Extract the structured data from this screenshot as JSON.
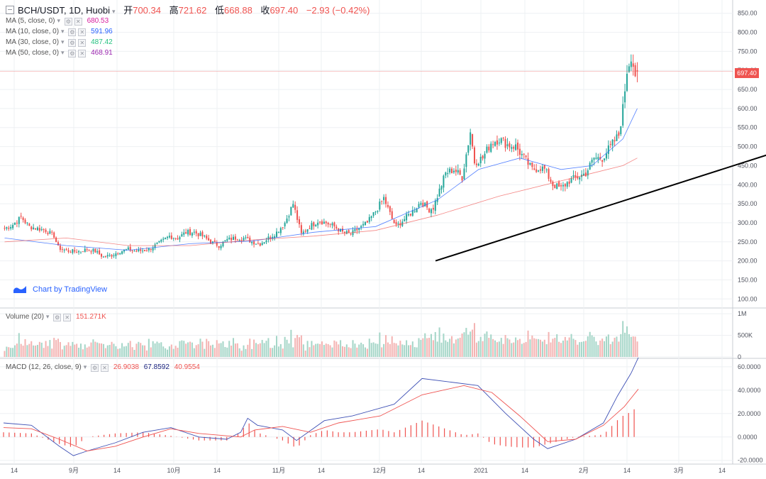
{
  "header": {
    "symbol": "BCH/USDT, 1D, Huobi",
    "open_label": "开",
    "open": "700.34",
    "high_label": "高",
    "high": "721.62",
    "low_label": "低",
    "low": "668.88",
    "close_label": "收",
    "close": "697.40",
    "change": "−2.93 (−0.42%)"
  },
  "indicators": {
    "ma5": {
      "label": "MA (5, close, 0)",
      "value": "680.53",
      "color": "#d81b9e"
    },
    "ma10": {
      "label": "MA (10, close, 0)",
      "value": "591.96",
      "color": "#2962ff"
    },
    "ma30": {
      "label": "MA (30, close, 0)",
      "value": "487.42",
      "color": "#26c281"
    },
    "ma50": {
      "label": "MA (50, close, 0)",
      "value": "468.91",
      "color": "#9c27b0"
    },
    "volume": {
      "label": "Volume (20)",
      "value": "151.271K",
      "color": "#ef5350"
    },
    "macd": {
      "label": "MACD (12, 26, close, 9)",
      "v1": "26.9038",
      "v2": "67.8592",
      "v3": "40.9554",
      "c1": "#ef5350",
      "c2": "#1a237e",
      "c3": "#ef5350"
    }
  },
  "branding": {
    "text": "Chart by TradingView"
  },
  "last_price_badge": "697.40",
  "colors": {
    "up": "#26a69a",
    "down": "#ef5350",
    "up_vol": "#a5d6c8",
    "down_vol": "#f4b4b3",
    "ma_fast": "#2962ff",
    "ma_slow": "#ef5350",
    "grid": "#eef0f3"
  },
  "chart_data": [
    {
      "type": "candlestick",
      "title": "BCH/USDT, 1D, Huobi",
      "price_axis_ticks": [
        "850.00",
        "800.00",
        "750.00",
        "700.00",
        "650.00",
        "600.00",
        "550.00",
        "500.00",
        "450.00",
        "400.00",
        "350.00",
        "300.00",
        "250.00",
        "200.00",
        "150.00",
        "100.00"
      ],
      "ylim": [
        80,
        870
      ],
      "last_price": 697.4,
      "x_ticks": [
        "14",
        "9月",
        "14",
        "10月",
        "14",
        "11月",
        "14",
        "12月",
        "14",
        "2021",
        "14",
        "2月",
        "14",
        "3月",
        "14"
      ],
      "trend_arrow": {
        "from": [
          54,
          200
        ],
        "to": [
          176,
          548
        ]
      },
      "close_path": [
        [
          0,
          285
        ],
        [
          4,
          295
        ],
        [
          8,
          315
        ],
        [
          12,
          290
        ],
        [
          16,
          285
        ],
        [
          20,
          280
        ],
        [
          24,
          265
        ],
        [
          26,
          235
        ],
        [
          28,
          230
        ],
        [
          32,
          225
        ],
        [
          36,
          225
        ],
        [
          40,
          230
        ],
        [
          44,
          225
        ],
        [
          48,
          210
        ],
        [
          52,
          215
        ],
        [
          56,
          225
        ],
        [
          60,
          230
        ],
        [
          64,
          225
        ],
        [
          70,
          230
        ],
        [
          76,
          250
        ],
        [
          80,
          265
        ],
        [
          84,
          260
        ],
        [
          88,
          275
        ],
        [
          92,
          275
        ],
        [
          96,
          265
        ],
        [
          100,
          250
        ],
        [
          104,
          240
        ],
        [
          108,
          255
        ],
        [
          112,
          260
        ],
        [
          116,
          260
        ],
        [
          120,
          250
        ],
        [
          124,
          245
        ],
        [
          128,
          260
        ],
        [
          132,
          275
        ],
        [
          136,
          300
        ],
        [
          140,
          350
        ],
        [
          142,
          310
        ],
        [
          144,
          270
        ],
        [
          148,
          290
        ],
        [
          152,
          305
        ],
        [
          156,
          300
        ],
        [
          160,
          290
        ],
        [
          164,
          275
        ],
        [
          168,
          270
        ],
        [
          172,
          285
        ],
        [
          176,
          300
        ],
        [
          180,
          330
        ],
        [
          184,
          365
        ],
        [
          188,
          310
        ],
        [
          190,
          290
        ],
        [
          194,
          310
        ],
        [
          198,
          330
        ],
        [
          202,
          355
        ],
        [
          206,
          335
        ],
        [
          208,
          340
        ],
        [
          212,
          400
        ],
        [
          214,
          430
        ],
        [
          218,
          440
        ],
        [
          222,
          420
        ],
        [
          226,
          540
        ],
        [
          228,
          460
        ],
        [
          232,
          470
        ],
        [
          236,
          510
        ],
        [
          240,
          520
        ],
        [
          244,
          505
        ],
        [
          248,
          500
        ],
        [
          252,
          470
        ],
        [
          256,
          440
        ],
        [
          260,
          445
        ],
        [
          262,
          440
        ],
        [
          266,
          400
        ],
        [
          270,
          390
        ],
        [
          274,
          410
        ],
        [
          278,
          420
        ],
        [
          282,
          430
        ],
        [
          286,
          470
        ],
        [
          290,
          470
        ],
        [
          294,
          500
        ],
        [
          298,
          530
        ],
        [
          300,
          600
        ],
        [
          302,
          700
        ],
        [
          304,
          740
        ],
        [
          306,
          690
        ],
        [
          307,
          697
        ]
      ],
      "ma_fast_path": [
        [
          0,
          260
        ],
        [
          30,
          240
        ],
        [
          60,
          228
        ],
        [
          90,
          245
        ],
        [
          120,
          252
        ],
        [
          150,
          275
        ],
        [
          180,
          290
        ],
        [
          210,
          360
        ],
        [
          230,
          440
        ],
        [
          250,
          470
        ],
        [
          270,
          440
        ],
        [
          285,
          450
        ],
        [
          300,
          520
        ],
        [
          307,
          600
        ]
      ],
      "ma_slow_path": [
        [
          0,
          250
        ],
        [
          30,
          260
        ],
        [
          60,
          240
        ],
        [
          90,
          240
        ],
        [
          120,
          255
        ],
        [
          150,
          265
        ],
        [
          180,
          280
        ],
        [
          210,
          320
        ],
        [
          240,
          370
        ],
        [
          270,
          410
        ],
        [
          285,
          430
        ],
        [
          300,
          450
        ],
        [
          307,
          470
        ]
      ]
    },
    {
      "type": "bar",
      "title": "Volume (20)",
      "axis_ticks": [
        "1M",
        "500K",
        "0"
      ],
      "ylim": [
        0,
        1100000
      ]
    },
    {
      "type": "line",
      "title": "MACD (12, 26, close, 9)",
      "axis_ticks": [
        "60.0000",
        "40.0000",
        "20.0000",
        "0.0000",
        "-20.0000"
      ],
      "ylim": [
        -22,
        66
      ],
      "macd_path": [
        [
          0,
          12
        ],
        [
          20,
          10
        ],
        [
          40,
          -8
        ],
        [
          50,
          -16
        ],
        [
          60,
          -12
        ],
        [
          80,
          -5
        ],
        [
          100,
          4
        ],
        [
          120,
          8
        ],
        [
          140,
          0
        ],
        [
          160,
          -2
        ],
        [
          170,
          4
        ],
        [
          175,
          16
        ],
        [
          182,
          10
        ],
        [
          200,
          6
        ],
        [
          210,
          -3
        ],
        [
          230,
          14
        ],
        [
          250,
          18
        ],
        [
          280,
          28
        ],
        [
          300,
          50
        ],
        [
          320,
          47
        ],
        [
          340,
          44
        ],
        [
          360,
          20
        ],
        [
          380,
          -2
        ],
        [
          390,
          -10
        ],
        [
          410,
          -2
        ],
        [
          430,
          12
        ],
        [
          440,
          35
        ],
        [
          450,
          55
        ],
        [
          455,
          67.86
        ]
      ],
      "signal_path": [
        [
          0,
          8
        ],
        [
          20,
          7
        ],
        [
          40,
          -2
        ],
        [
          60,
          -12
        ],
        [
          80,
          -8
        ],
        [
          100,
          0
        ],
        [
          120,
          7
        ],
        [
          140,
          3
        ],
        [
          170,
          0
        ],
        [
          180,
          6
        ],
        [
          200,
          9
        ],
        [
          220,
          4
        ],
        [
          240,
          12
        ],
        [
          270,
          18
        ],
        [
          300,
          36
        ],
        [
          330,
          44
        ],
        [
          350,
          38
        ],
        [
          370,
          18
        ],
        [
          390,
          -4
        ],
        [
          410,
          -2
        ],
        [
          430,
          10
        ],
        [
          445,
          26
        ],
        [
          455,
          40.96
        ]
      ]
    }
  ]
}
